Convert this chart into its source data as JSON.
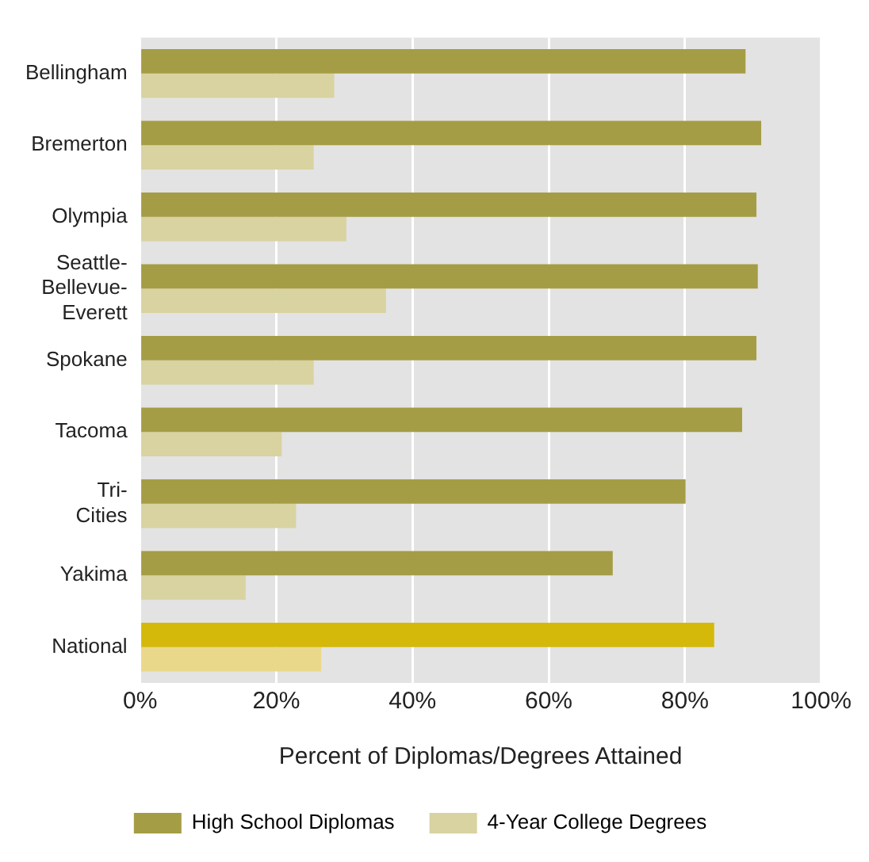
{
  "chart_data": {
    "type": "bar",
    "orientation": "horizontal",
    "xlabel": "Percent of Diplomas/Degrees Attained",
    "categories": [
      "Bellingham",
      "Bremerton",
      "Olympia",
      "Seattle-Bellevue-Everett",
      "Spokane",
      "Tacoma",
      "Tri-Cities",
      "Yakima",
      "National"
    ],
    "series": [
      {
        "name": "High School Diplomas",
        "color": "#a59d45",
        "colors": [
          "#a59d45",
          "#a59d45",
          "#a59d45",
          "#a59d45",
          "#a59d45",
          "#a59d45",
          "#a59d45",
          "#a59d45",
          "#d4b90a"
        ],
        "values": [
          88.9,
          91.2,
          90.5,
          90.7,
          90.5,
          88.4,
          80.1,
          69.4,
          84.3
        ]
      },
      {
        "name": "4-Year College Degrees",
        "color": "#d8d3a0",
        "colors": [
          "#d8d3a0",
          "#d8d3a0",
          "#d8d3a0",
          "#d8d3a0",
          "#d8d3a0",
          "#d8d3a0",
          "#d8d3a0",
          "#d8d3a0",
          "#ead88a"
        ],
        "values": [
          28.5,
          25.5,
          30.3,
          36.1,
          25.5,
          20.8,
          22.9,
          15.5,
          26.6
        ]
      }
    ],
    "xlim": [
      0,
      100
    ],
    "xticks": [
      {
        "value": 0,
        "label": "0%"
      },
      {
        "value": 20,
        "label": "20%"
      },
      {
        "value": 40,
        "label": "40%"
      },
      {
        "value": 60,
        "label": "60%"
      },
      {
        "value": 80,
        "label": "80%"
      },
      {
        "value": 100,
        "label": "100%"
      }
    ],
    "grid": "x",
    "legend": "bottom"
  }
}
